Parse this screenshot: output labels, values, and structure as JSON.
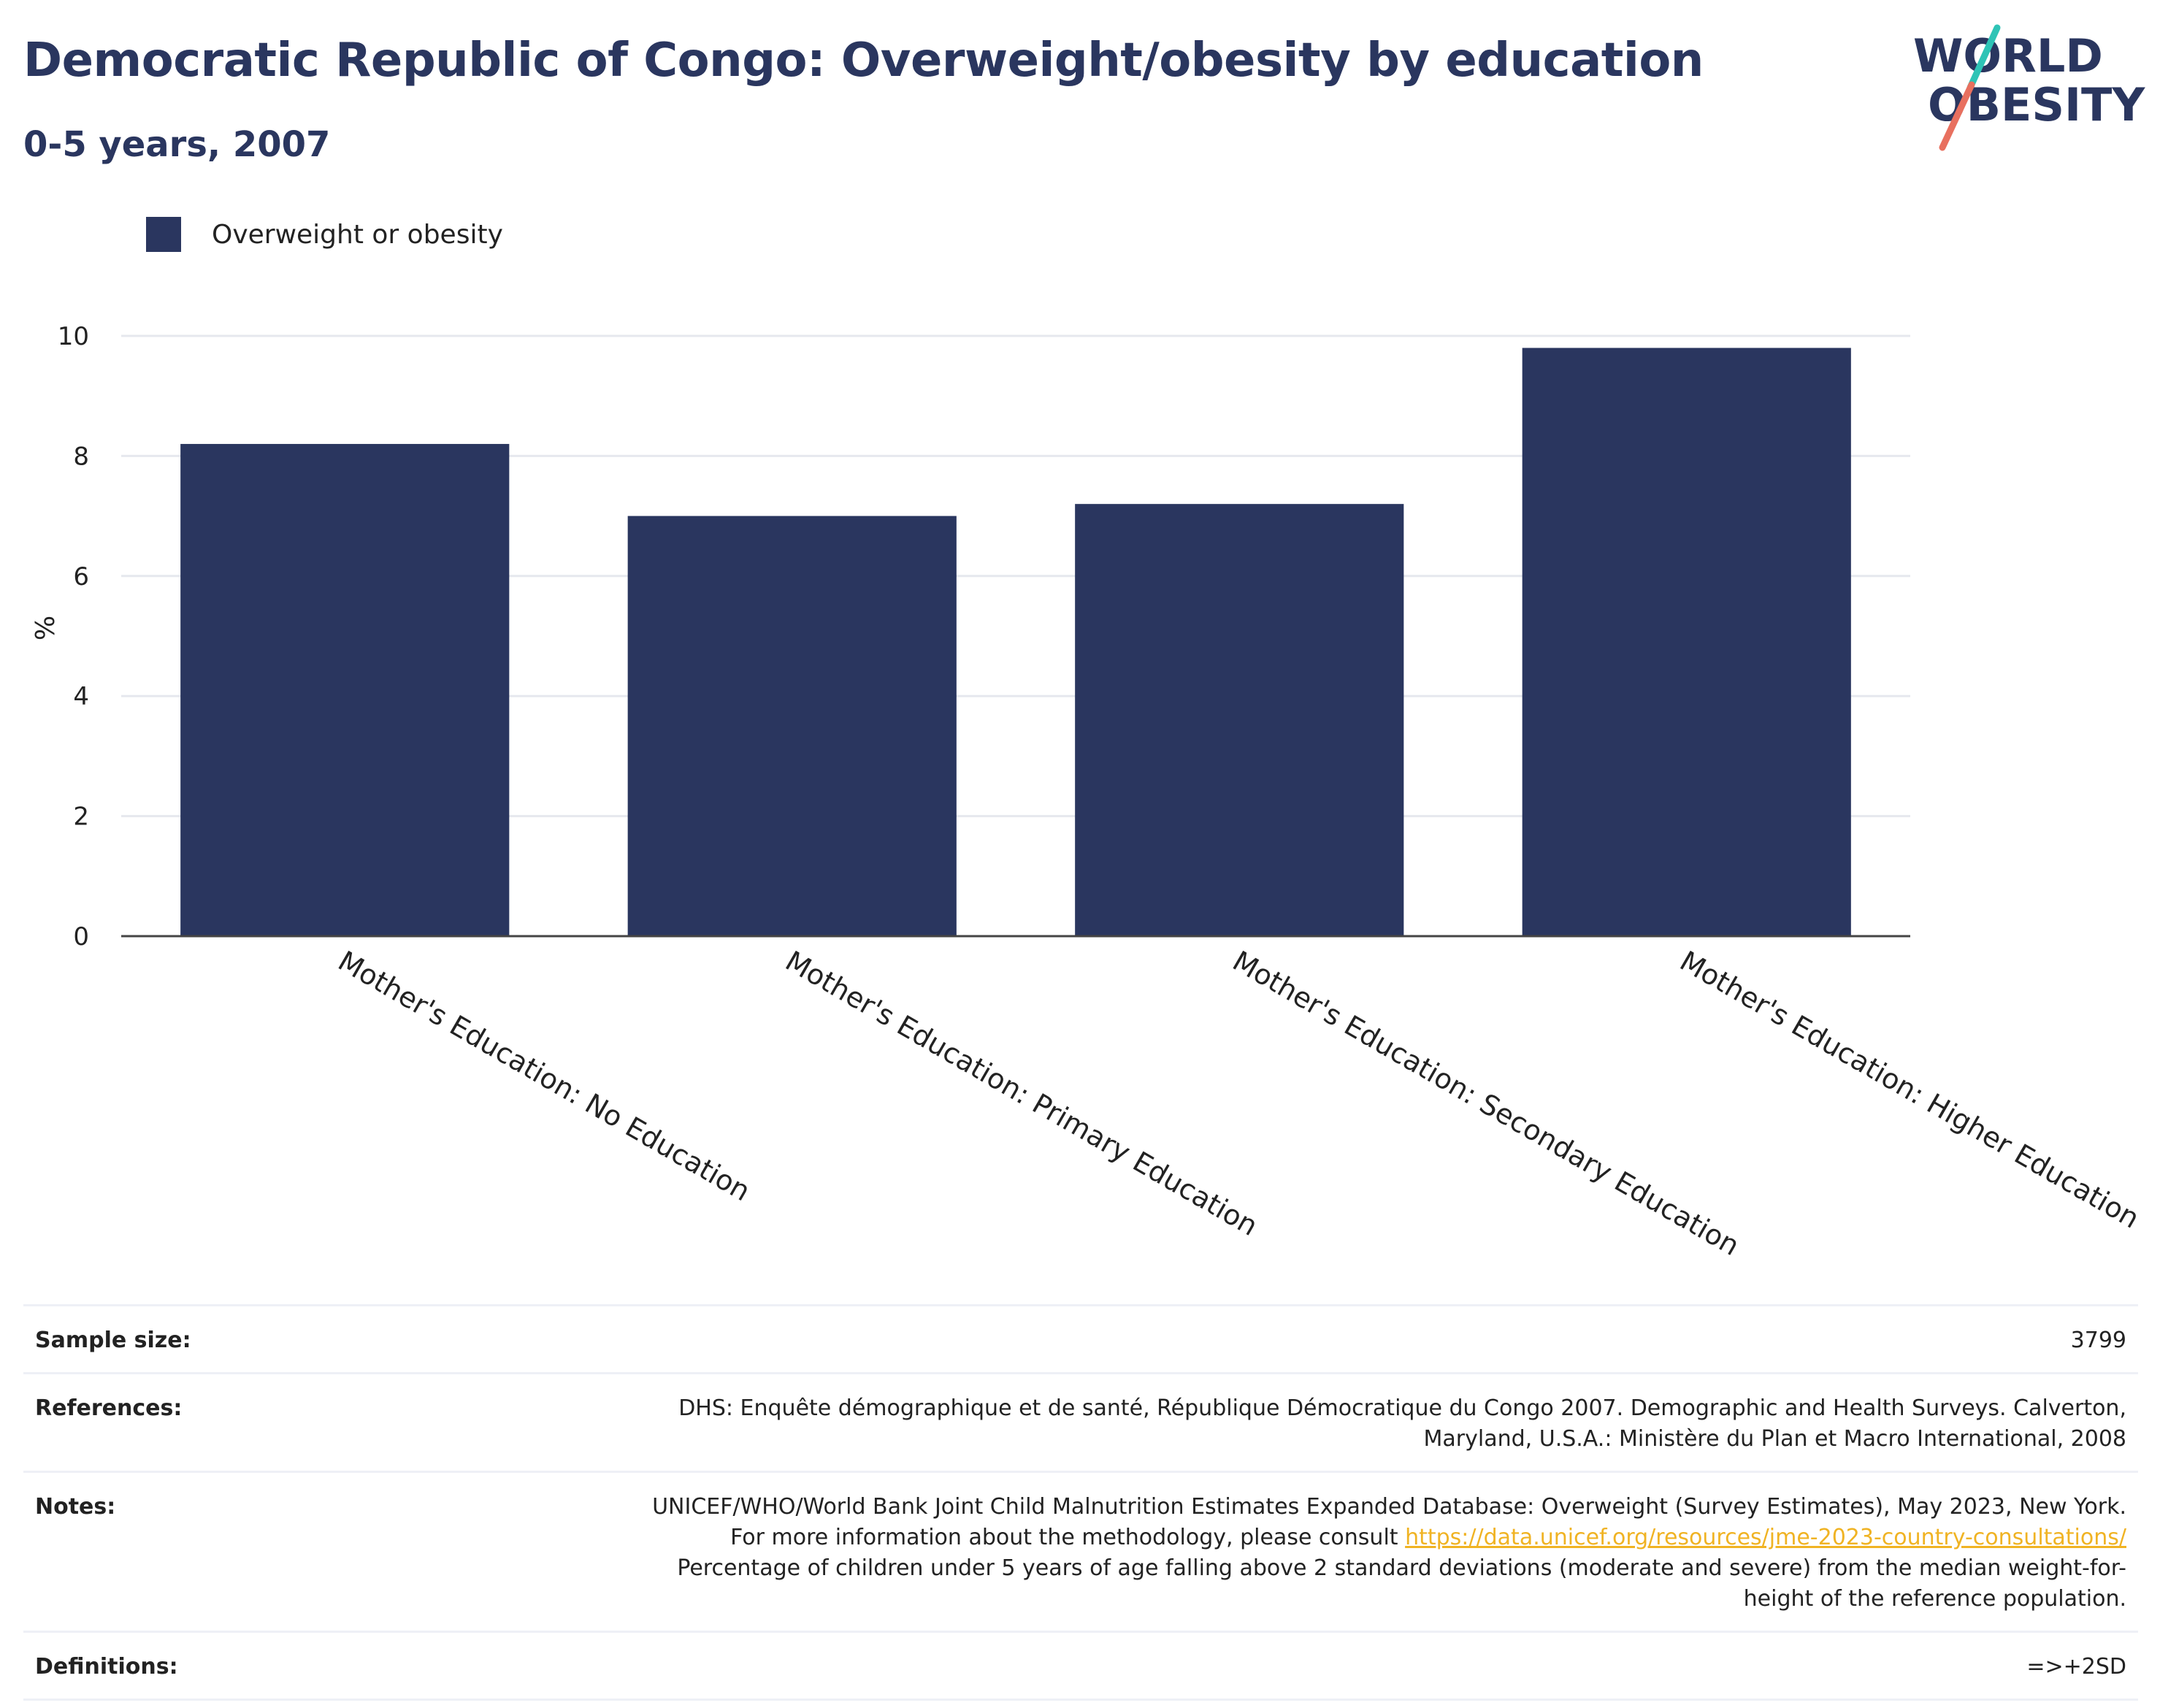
{
  "header": {
    "title": "Democratic Republic of Congo: Overweight/obesity by education",
    "subtitle": "0-5 years, 2007"
  },
  "logo": {
    "line1": "WORLD",
    "line2": "OBESITY",
    "slash_colors": [
      "#2ec4b6",
      "#e8705f"
    ]
  },
  "colors": {
    "bar": "#2a365f",
    "text": "#2a365f",
    "accent": "#f0b323"
  },
  "chart_data": {
    "type": "bar",
    "categories": [
      "Mother's Education: No Education",
      "Mother's Education: Primary Education",
      "Mother's Education: Secondary Education",
      "Mother's Education: Higher Education"
    ],
    "series": [
      {
        "name": "Overweight or obesity",
        "values": [
          8.2,
          7.0,
          7.2,
          9.8
        ]
      }
    ],
    "ylabel": "%",
    "ylim": [
      0,
      10
    ],
    "yticks": [
      0,
      2,
      4,
      6,
      8,
      10
    ],
    "grid": true,
    "legend": "top-left"
  },
  "info": {
    "sample_size_label": "Sample size:",
    "sample_size_value": "3799",
    "references_label": "References:",
    "references_value": "DHS: Enquête démographique et de santé, République Démocratique du Congo 2007. Demographic and Health Surveys. Calverton, Maryland, U.S.A.: Ministère du Plan et Macro International, 2008",
    "notes_label": "Notes:",
    "notes_value_pre": "UNICEF/WHO/World Bank Joint Child Malnutrition Estimates Expanded Database: Overweight (Survey Estimates), May 2023, New York. For more information about the methodology, please consult",
    "notes_link": "https://data.unicef.org/resources/jme-2023-country-consultations/",
    "notes_value_post": "Percentage of children under 5 years of age falling above 2 standard deviations (moderate and severe) from the median weight-for-height of the reference population.",
    "definitions_label": "Definitions:",
    "definitions_value": "=>+2SD"
  }
}
